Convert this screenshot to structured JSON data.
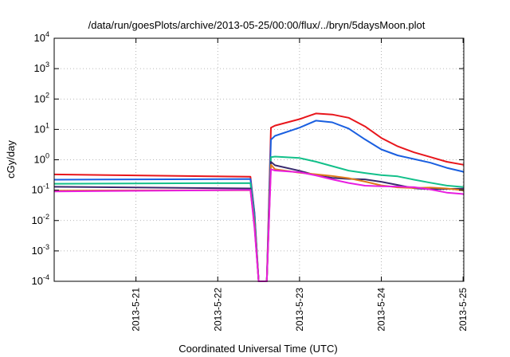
{
  "chart_data": {
    "type": "line",
    "title": "/data/run/goesPlots/archive/2013-05-25/00:00/flux/../bryn/5daysMoon.plot",
    "xlabel": "Coordinated Universal Time (UTC)",
    "ylabel": "cGy/day",
    "xlim": [
      "2013-05-20T00:00",
      "2013-05-25T00:12"
    ],
    "ylim": [
      0.0001,
      10000
    ],
    "yscale": "log",
    "grid": true,
    "x_ticks": [
      "2013-5-21",
      "2013-5-22",
      "2013-5-23",
      "2013-5-24",
      "2013-5-25"
    ],
    "y_ticks": [
      {
        "base": "10",
        "exp": "-4"
      },
      {
        "base": "10",
        "exp": "-3"
      },
      {
        "base": "10",
        "exp": "-2"
      },
      {
        "base": "10",
        "exp": "-1"
      },
      {
        "base": "10",
        "exp": "0"
      },
      {
        "base": "10",
        "exp": "1"
      },
      {
        "base": "10",
        "exp": "2"
      },
      {
        "base": "10",
        "exp": "3"
      },
      {
        "base": "10",
        "exp": "4"
      }
    ],
    "series": [
      {
        "color": "#e8161c",
        "x": [
          "2013-05-20T00:00",
          "2013-05-22T09:36",
          "2013-05-22T10:48",
          "2013-05-22T12:00",
          "2013-05-22T14:24",
          "2013-05-22T15:36",
          "2013-05-22T16:48",
          "2013-05-23T00:00",
          "2013-05-23T04:48",
          "2013-05-23T09:36",
          "2013-05-23T14:24",
          "2013-05-23T19:12",
          "2013-05-24T00:00",
          "2013-05-24T04:48",
          "2013-05-24T09:36",
          "2013-05-24T14:24",
          "2013-05-24T19:12",
          "2013-05-25T00:12"
        ],
        "values": [
          0.33,
          0.31,
          0.02,
          0.0001,
          0.0001,
          10,
          13,
          24,
          38,
          32,
          22,
          11,
          5,
          3,
          2,
          1.3,
          0.8,
          0.6
        ]
      },
      {
        "color": "#1a5fe0",
        "x": [
          "2013-05-20T00:00",
          "2013-05-22T09:36",
          "2013-05-22T10:48",
          "2013-05-22T12:00",
          "2013-05-22T14:24",
          "2013-05-22T15:36",
          "2013-05-22T16:48",
          "2013-05-23T00:00",
          "2013-05-23T04:48",
          "2013-05-23T09:36",
          "2013-05-23T14:24",
          "2013-05-23T19:12",
          "2013-05-24T00:00",
          "2013-05-24T04:48",
          "2013-05-24T09:36",
          "2013-05-24T14:24",
          "2013-05-24T19:12",
          "2013-05-25T00:12"
        ],
        "values": [
          0.25,
          0.24,
          0.015,
          0.0001,
          0.0001,
          5,
          7,
          12,
          18,
          15,
          10,
          5,
          2.5,
          1.5,
          1,
          0.7,
          0.5,
          0.42
        ]
      },
      {
        "color": "#13c08a",
        "x": [
          "2013-05-20T00:00",
          "2013-05-22T09:36",
          "2013-05-22T10:48",
          "2013-05-22T12:00",
          "2013-05-22T14:24",
          "2013-05-22T15:36",
          "2013-05-22T16:48",
          "2013-05-23T00:00",
          "2013-05-23T04:48",
          "2013-05-23T09:36",
          "2013-05-23T14:24",
          "2013-05-23T19:12",
          "2013-05-24T00:00",
          "2013-05-24T04:48",
          "2013-05-24T09:36",
          "2013-05-24T14:24",
          "2013-05-24T19:12",
          "2013-05-25T00:12"
        ],
        "values": [
          0.15,
          0.15,
          0.01,
          0.0001,
          0.0001,
          1.3,
          1.2,
          1.0,
          0.8,
          0.65,
          0.5,
          0.4,
          0.3,
          0.25,
          0.2,
          0.18,
          0.16,
          0.14
        ]
      },
      {
        "color": "#3a2a6e",
        "x": [
          "2013-05-20T00:00",
          "2013-05-22T09:36",
          "2013-05-22T10:48",
          "2013-05-22T12:00",
          "2013-05-22T14:24",
          "2013-05-22T15:36",
          "2013-05-22T16:48",
          "2013-05-23T00:00",
          "2013-05-23T04:48",
          "2013-05-23T09:36",
          "2013-05-23T14:24",
          "2013-05-23T19:12",
          "2013-05-24T00:00",
          "2013-05-24T04:48",
          "2013-05-24T09:36",
          "2013-05-24T14:24",
          "2013-05-24T19:12",
          "2013-05-25T00:12"
        ],
        "values": [
          0.12,
          0.12,
          0.008,
          0.0001,
          0.0001,
          0.75,
          0.6,
          0.45,
          0.35,
          0.28,
          0.23,
          0.2,
          0.17,
          0.15,
          0.13,
          0.12,
          0.11,
          0.1
        ]
      },
      {
        "color": "#e07a1a",
        "x": [
          "2013-05-20T00:00",
          "2013-05-22T09:36",
          "2013-05-22T10:48",
          "2013-05-22T12:00",
          "2013-05-22T14:24",
          "2013-05-22T15:36",
          "2013-05-22T16:48",
          "2013-05-23T00:00",
          "2013-05-23T04:48",
          "2013-05-23T09:36",
          "2013-05-23T14:24",
          "2013-05-23T19:12",
          "2013-05-24T00:00",
          "2013-05-24T04:48",
          "2013-05-24T09:36",
          "2013-05-24T14:24",
          "2013-05-24T19:12",
          "2013-05-25T00:12"
        ],
        "values": [
          0.11,
          0.11,
          0.007,
          0.0001,
          0.0001,
          0.7,
          0.55,
          0.42,
          0.33,
          0.26,
          0.22,
          0.19,
          0.16,
          0.14,
          0.12,
          0.11,
          0.1,
          0.095
        ]
      },
      {
        "color": "#e81ee0",
        "x": [
          "2013-05-20T00:00",
          "2013-05-22T09:36",
          "2013-05-22T10:48",
          "2013-05-22T12:00",
          "2013-05-22T14:24",
          "2013-05-22T15:36",
          "2013-05-22T16:48",
          "2013-05-23T00:00",
          "2013-05-23T04:48",
          "2013-05-23T09:36",
          "2013-05-23T14:24",
          "2013-05-23T19:12",
          "2013-05-24T00:00",
          "2013-05-24T04:48",
          "2013-05-24T09:36",
          "2013-05-24T14:24",
          "2013-05-24T19:12",
          "2013-05-25T00:12"
        ],
        "values": [
          0.09,
          0.09,
          0.005,
          0.0001,
          0.0001,
          0.55,
          0.45,
          0.35,
          0.27,
          0.22,
          0.19,
          0.16,
          0.14,
          0.12,
          0.11,
          0.1,
          0.09,
          0.085
        ]
      }
    ]
  }
}
